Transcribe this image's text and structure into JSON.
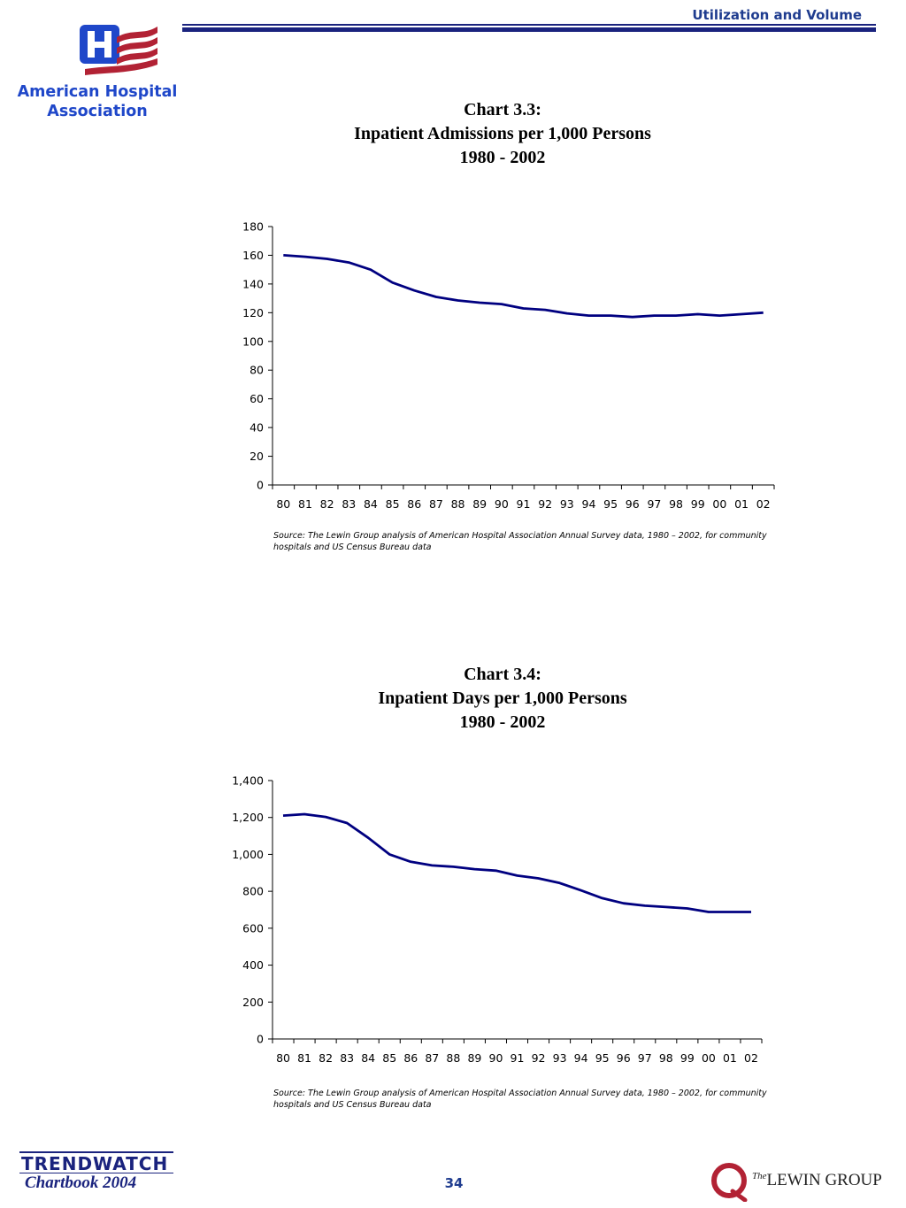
{
  "header": {
    "section_title": "Utilization and Volume"
  },
  "aha_logo": {
    "name_line1": "American Hospital",
    "name_line2": "Association",
    "colors": {
      "blue": "#1f47c9",
      "red": "#b22234"
    }
  },
  "charts": [
    {
      "title_line1": "Chart 3.3:",
      "title_line2": "Inpatient Admissions per 1,000 Persons",
      "title_line3": "1980 - 2002",
      "source": "Source: The Lewin Group analysis of American Hospital Association Annual Survey data, 1980 – 2002, for community hospitals and US Census Bureau data"
    },
    {
      "title_line1": "Chart 3.4:",
      "title_line2": "Inpatient Days per 1,000 Persons",
      "title_line3": "1980 - 2002",
      "source": "Source: The Lewin Group analysis of American Hospital Association Annual Survey data, 1980 – 2002, for community hospitals and US Census Bureau data"
    }
  ],
  "chart_data": [
    {
      "type": "line",
      "title": "Inpatient Admissions per 1,000 Persons 1980 - 2002",
      "xlabel": "",
      "ylabel": "",
      "categories": [
        "80",
        "81",
        "82",
        "83",
        "84",
        "85",
        "86",
        "87",
        "88",
        "89",
        "90",
        "91",
        "92",
        "93",
        "94",
        "95",
        "96",
        "97",
        "98",
        "99",
        "00",
        "01",
        "02"
      ],
      "series": [
        {
          "values": [
            160.0,
            159.0,
            157.5,
            155.0,
            150.0,
            141.0,
            135.5,
            131.0,
            128.5,
            127.0,
            126.0,
            123.0,
            122.0,
            119.5,
            118.0,
            118.0,
            117.0,
            118.0,
            118.0,
            119.0,
            118.0,
            119.0,
            120.0
          ]
        }
      ],
      "ylim": [
        0,
        180
      ],
      "yticks": [
        0,
        20,
        40,
        60,
        80,
        100,
        120,
        140,
        160,
        180
      ],
      "ytick_labels": [
        "0",
        "20",
        "40",
        "60",
        "80",
        "100",
        "120",
        "140",
        "160",
        "180"
      ],
      "grid": false,
      "line_color": "#000080"
    },
    {
      "type": "line",
      "title": "Inpatient Days per 1,000 Persons 1980 - 2002",
      "xlabel": "",
      "ylabel": "",
      "categories": [
        "80",
        "81",
        "82",
        "83",
        "84",
        "85",
        "86",
        "87",
        "88",
        "89",
        "90",
        "91",
        "92",
        "93",
        "94",
        "95",
        "96",
        "97",
        "98",
        "99",
        "00",
        "01",
        "02"
      ],
      "series": [
        {
          "values": [
            1210,
            1218,
            1203,
            1170,
            1090,
            1000,
            960,
            940,
            933,
            920,
            912,
            885,
            870,
            845,
            805,
            763,
            735,
            722,
            715,
            707,
            688,
            688,
            688
          ]
        }
      ],
      "ylim": [
        0,
        1400
      ],
      "yticks": [
        0,
        200,
        400,
        600,
        800,
        1000,
        1200,
        1400
      ],
      "ytick_labels": [
        "0",
        "200",
        "400",
        "600",
        "800",
        "1,000",
        "1,200",
        "1,400"
      ],
      "grid": false,
      "line_color": "#000080"
    }
  ],
  "footer": {
    "trendwatch": "TRENDWATCH",
    "chartbook": "Chartbook 2004",
    "page_number": "34",
    "lewin_the": "The",
    "lewin_name": "LEWIN GROUP",
    "lewin_color": "#b22234"
  }
}
